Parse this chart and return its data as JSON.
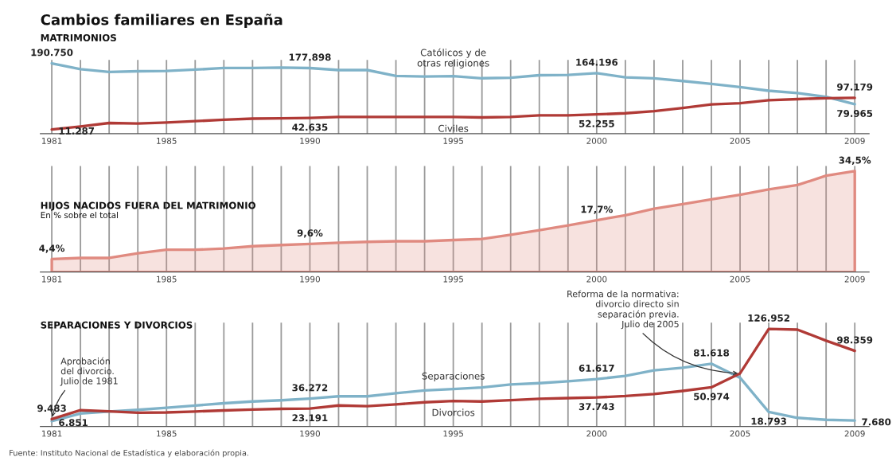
{
  "chart_data": [
    {
      "type": "line",
      "title": "Cambios familiares en España",
      "subtitle": "MATRIMONIOS",
      "x": [
        1981,
        1982,
        1983,
        1984,
        1985,
        1986,
        1987,
        1988,
        1989,
        1990,
        1991,
        1992,
        1993,
        1994,
        1995,
        1996,
        1997,
        1998,
        1999,
        2000,
        2001,
        2002,
        2003,
        2004,
        2005,
        2006,
        2007,
        2008,
        2009
      ],
      "xlim": [
        1980.6,
        2009.5
      ],
      "xticks": [
        1981,
        {
          "value": 1982,
          "label": null
        },
        {
          "value": 1983,
          "label": null
        },
        {
          "value": 1984,
          "label": null
        },
        1985,
        {
          "value": 1986,
          "label": null
        },
        {
          "value": 1987,
          "label": null
        },
        {
          "value": 1988,
          "label": null
        },
        {
          "value": 1989,
          "label": null
        },
        1990,
        {
          "value": 1991,
          "label": null
        },
        {
          "value": 1992,
          "label": null
        },
        {
          "value": 1993,
          "label": null
        },
        {
          "value": 1994,
          "label": null
        },
        1995,
        {
          "value": 1996,
          "label": null
        },
        {
          "value": 1997,
          "label": null
        },
        {
          "value": 1998,
          "label": null
        },
        {
          "value": 1999,
          "label": null
        },
        2000,
        {
          "value": 2001,
          "label": null
        },
        {
          "value": 2002,
          "label": null
        },
        {
          "value": 2003,
          "label": null
        },
        {
          "value": 2004,
          "label": null
        },
        2005,
        {
          "value": 2006,
          "label": null
        },
        {
          "value": 2007,
          "label": null
        },
        {
          "value": 2008,
          "label": null
        },
        2009
      ],
      "ylim": [
        0,
        200000
      ],
      "tick_labels": "x",
      "grid": "x",
      "series": [
        {
          "name": "Católicos y de\notras religiones",
          "color": "#7fb2c8",
          "values": [
            190750,
            175000,
            167500,
            169300,
            170000,
            173700,
            178100,
            178100,
            179400,
            177898,
            172500,
            172500,
            156700,
            154900,
            156100,
            150300,
            151600,
            158500,
            159200,
            164196,
            152900,
            150300,
            142800,
            135200,
            126400,
            116400,
            110100,
            100000,
            79965
          ],
          "value_labels": [
            "190.750",
            null,
            null,
            null,
            null,
            null,
            null,
            null,
            null,
            "177.898",
            null,
            null,
            null,
            null,
            null,
            null,
            null,
            null,
            null,
            "164.196",
            null,
            null,
            null,
            null,
            null,
            null,
            null,
            null,
            "79.965"
          ]
        },
        {
          "name": "Civiles",
          "color": "#b03a36",
          "values": [
            11287,
            19500,
            28900,
            27600,
            30200,
            33900,
            37700,
            40900,
            41500,
            42635,
            45300,
            45300,
            45300,
            45300,
            45300,
            44100,
            45300,
            49700,
            49700,
            52255,
            55400,
            61100,
            69900,
            79300,
            82500,
            90700,
            93800,
            96300,
            97179
          ],
          "value_labels": [
            "11.287",
            null,
            null,
            null,
            null,
            null,
            null,
            null,
            null,
            "42.635",
            null,
            null,
            null,
            null,
            null,
            null,
            null,
            null,
            null,
            "52.255",
            null,
            null,
            null,
            null,
            null,
            null,
            null,
            null,
            "97.179"
          ]
        }
      ]
    },
    {
      "type": "area",
      "title": "HIJOS NACIDOS FUERA DEL MATRIMONIO",
      "subtitle": "En % sobre el total",
      "x": [
        1981,
        1982,
        1983,
        1984,
        1985,
        1986,
        1987,
        1988,
        1989,
        1990,
        1991,
        1992,
        1993,
        1994,
        1995,
        1996,
        1997,
        1998,
        1999,
        2000,
        2001,
        2002,
        2003,
        2004,
        2005,
        2006,
        2007,
        2008,
        2009
      ],
      "xlim": [
        1980.6,
        2009.5
      ],
      "xticks": [
        1981,
        {
          "value": 1982,
          "label": null
        },
        {
          "value": 1983,
          "label": null
        },
        {
          "value": 1984,
          "label": null
        },
        1985,
        {
          "value": 1986,
          "label": null
        },
        {
          "value": 1987,
          "label": null
        },
        {
          "value": 1988,
          "label": null
        },
        {
          "value": 1989,
          "label": null
        },
        1990,
        {
          "value": 1991,
          "label": null
        },
        {
          "value": 1992,
          "label": null
        },
        {
          "value": 1993,
          "label": null
        },
        {
          "value": 1994,
          "label": null
        },
        1995,
        {
          "value": 1996,
          "label": null
        },
        {
          "value": 1997,
          "label": null
        },
        {
          "value": 1998,
          "label": null
        },
        {
          "value": 1999,
          "label": null
        },
        2000,
        {
          "value": 2001,
          "label": null
        },
        {
          "value": 2002,
          "label": null
        },
        {
          "value": 2003,
          "label": null
        },
        {
          "value": 2004,
          "label": null
        },
        2005,
        {
          "value": 2006,
          "label": null
        },
        {
          "value": 2007,
          "label": null
        },
        {
          "value": 2008,
          "label": null
        },
        2009
      ],
      "tick_labels": "x",
      "grid": "x",
      "series": [
        {
          "color": "#e08a80",
          "values": [
            4.4,
            4.8,
            4.8,
            6.4,
            7.6,
            7.6,
            8.0,
            8.8,
            9.2,
            9.6,
            10.0,
            10.3,
            10.5,
            10.5,
            10.9,
            11.3,
            12.7,
            14.3,
            15.9,
            17.7,
            19.4,
            21.6,
            23.2,
            24.8,
            26.4,
            28.2,
            29.7,
            32.9,
            34.5
          ],
          "value_labels": [
            "4,4%",
            null,
            null,
            null,
            null,
            null,
            null,
            null,
            null,
            "9,6%",
            null,
            null,
            null,
            null,
            null,
            null,
            null,
            null,
            null,
            "17,7%",
            null,
            null,
            null,
            null,
            null,
            null,
            null,
            null,
            "34,5%"
          ]
        }
      ]
    },
    {
      "type": "line",
      "title": "SEPARACIONES Y DIVORCIOS",
      "x": [
        1981,
        1982,
        1983,
        1984,
        1985,
        1986,
        1987,
        1988,
        1989,
        1990,
        1991,
        1992,
        1993,
        1994,
        1995,
        1996,
        1997,
        1998,
        1999,
        2000,
        2001,
        2002,
        2003,
        2004,
        2005,
        2006,
        2007,
        2008,
        2009
      ],
      "xlim": [
        1980.6,
        2009.5
      ],
      "xticks": [
        1981,
        {
          "value": 1982,
          "label": null
        },
        {
          "value": 1983,
          "label": null
        },
        {
          "value": 1984,
          "label": null
        },
        1985,
        {
          "value": 1986,
          "label": null
        },
        {
          "value": 1987,
          "label": null
        },
        {
          "value": 1988,
          "label": null
        },
        {
          "value": 1989,
          "label": null
        },
        1990,
        {
          "value": 1991,
          "label": null
        },
        {
          "value": 1992,
          "label": null
        },
        {
          "value": 1993,
          "label": null
        },
        {
          "value": 1994,
          "label": null
        },
        1995,
        {
          "value": 1996,
          "label": null
        },
        {
          "value": 1997,
          "label": null
        },
        {
          "value": 1998,
          "label": null
        },
        {
          "value": 1999,
          "label": null
        },
        2000,
        {
          "value": 2001,
          "label": null
        },
        {
          "value": 2002,
          "label": null
        },
        {
          "value": 2003,
          "label": null
        },
        {
          "value": 2004,
          "label": null
        },
        2005,
        {
          "value": 2006,
          "label": null
        },
        {
          "value": 2007,
          "label": null
        },
        {
          "value": 2008,
          "label": null
        },
        2009
      ],
      "ylim": [
        0,
        135000
      ],
      "tick_labels": "x",
      "grid": "x",
      "series": [
        {
          "name": "Separaciones",
          "color": "#7fb2c8",
          "values": [
            6851,
            16900,
            19300,
            21600,
            24300,
            27200,
            30100,
            32500,
            34000,
            36272,
            39200,
            39200,
            43300,
            46800,
            48600,
            50800,
            54600,
            56300,
            58700,
            61617,
            65700,
            73000,
            76300,
            81618,
            63400,
            18793,
            11200,
            8600,
            7680
          ],
          "value_labels": [
            "6.851",
            null,
            null,
            null,
            null,
            null,
            null,
            null,
            null,
            "36.272",
            null,
            null,
            null,
            null,
            null,
            null,
            null,
            null,
            null,
            "61.617",
            null,
            null,
            null,
            "81.618",
            null,
            "18.793",
            null,
            null,
            "7.680"
          ]
        },
        {
          "name": "Divorcios",
          "color": "#b03a36",
          "values": [
            9483,
            21100,
            19700,
            17900,
            18200,
            19400,
            20800,
            22000,
            22900,
            23191,
            27300,
            26400,
            28700,
            31400,
            33100,
            32500,
            34200,
            36000,
            36900,
            37743,
            39500,
            42100,
            46200,
            50974,
            69100,
            126952,
            126000,
            111600,
            98359
          ],
          "value_labels": [
            "9.483",
            null,
            null,
            null,
            null,
            null,
            null,
            null,
            null,
            "23.191",
            null,
            null,
            null,
            null,
            null,
            null,
            null,
            null,
            null,
            "37.743",
            null,
            null,
            null,
            "50.974",
            null,
            "126.952",
            null,
            null,
            "98.359"
          ]
        }
      ],
      "annotations": [
        {
          "text": "Aprobación\ndel divorcio.\nJulio de 1981",
          "x": 1981,
          "y": 9483
        },
        {
          "text": "Reforma de la normativa:\ndivorcio directo sin\nseparación previa.\nJulio de 2005",
          "x": 2005,
          "y": 69100
        },
        "Fuente: Instituto Nacional de Estadística y elaboración propia."
      ]
    }
  ]
}
